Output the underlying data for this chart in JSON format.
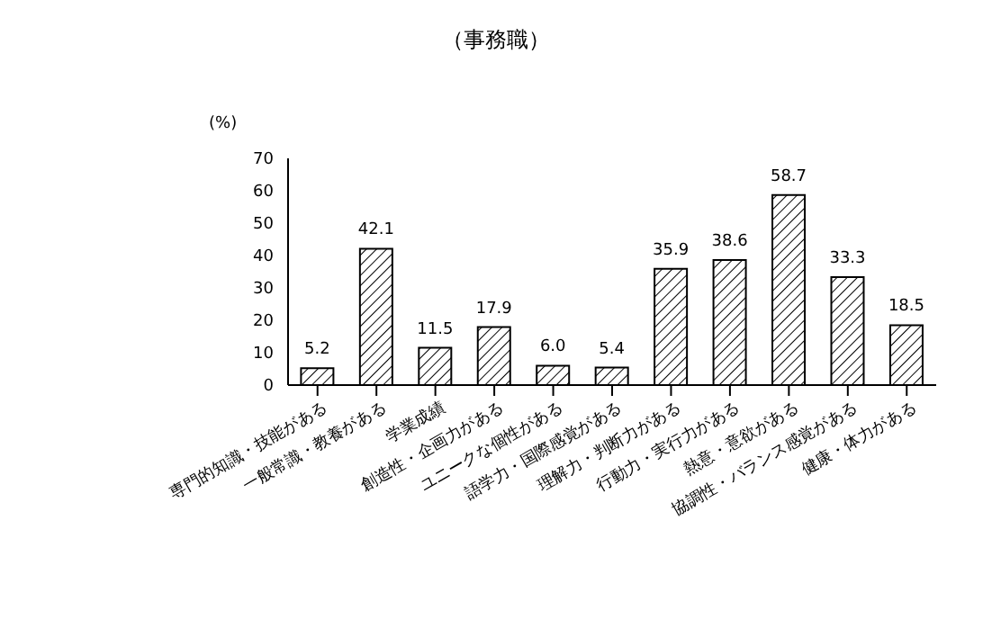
{
  "chart_data": {
    "type": "bar",
    "title": "（事務職）",
    "ylabel": "(%)",
    "categories": [
      "専門的知識・技能がある",
      "一般常識・教養がある",
      "学業成績",
      "創造性・企画力がある",
      "ユニークな個性がある",
      "語学力・国際感覚がある",
      "理解力・判断力がある",
      "行動力・実行力がある",
      "熱意・意欲がある",
      "協調性・バランス感覚がある",
      "健康・体力がある"
    ],
    "values": [
      5.2,
      42.1,
      11.5,
      17.9,
      6.0,
      5.4,
      35.9,
      38.6,
      58.7,
      33.3,
      18.5
    ],
    "value_labels": [
      "5.2",
      "42.1",
      "11.5",
      "17.9",
      "6.0",
      "5.4",
      "35.9",
      "38.6",
      "58.7",
      "33.3",
      "18.5"
    ],
    "color": "#000000",
    "ylim": [
      0,
      70
    ],
    "yticks": [
      0,
      10,
      20,
      30,
      40,
      50,
      60,
      70
    ],
    "grid": false,
    "legend": false
  }
}
